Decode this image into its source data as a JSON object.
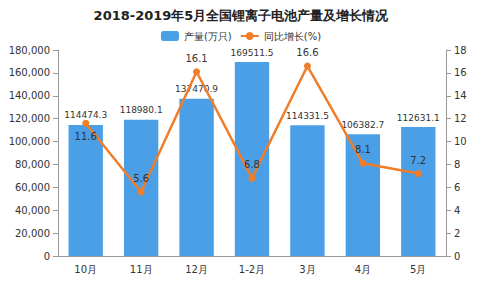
{
  "chart_data": {
    "type": "bar",
    "title": "2018-2019年5月全国锂离子电池产量及增长情况",
    "categories": [
      "10月",
      "11月",
      "12月",
      "1-2月",
      "3月",
      "4月",
      "5月"
    ],
    "series": [
      {
        "name": "产量(万只)",
        "type": "bar",
        "color": "#4a9fe6",
        "values": [
          114474.3,
          118980.1,
          137470.9,
          169511.5,
          114331.5,
          106382.7,
          112631.1
        ]
      },
      {
        "name": "同比增长(%)",
        "type": "line",
        "axis": "y2",
        "color": "#f07d2a",
        "marker": "circle",
        "values": [
          11.6,
          5.6,
          16.1,
          6.8,
          16.6,
          8.1,
          7.2
        ]
      }
    ],
    "ylim": [
      0,
      180000
    ],
    "yticks": [
      0,
      20000,
      40000,
      60000,
      80000,
      100000,
      120000,
      140000,
      160000,
      180000
    ],
    "y2lim": [
      0,
      18
    ],
    "y2ticks": [
      0,
      2,
      4,
      6,
      8,
      10,
      12,
      14,
      16,
      18
    ],
    "grid": false,
    "legend": "top",
    "data_labels": true
  }
}
